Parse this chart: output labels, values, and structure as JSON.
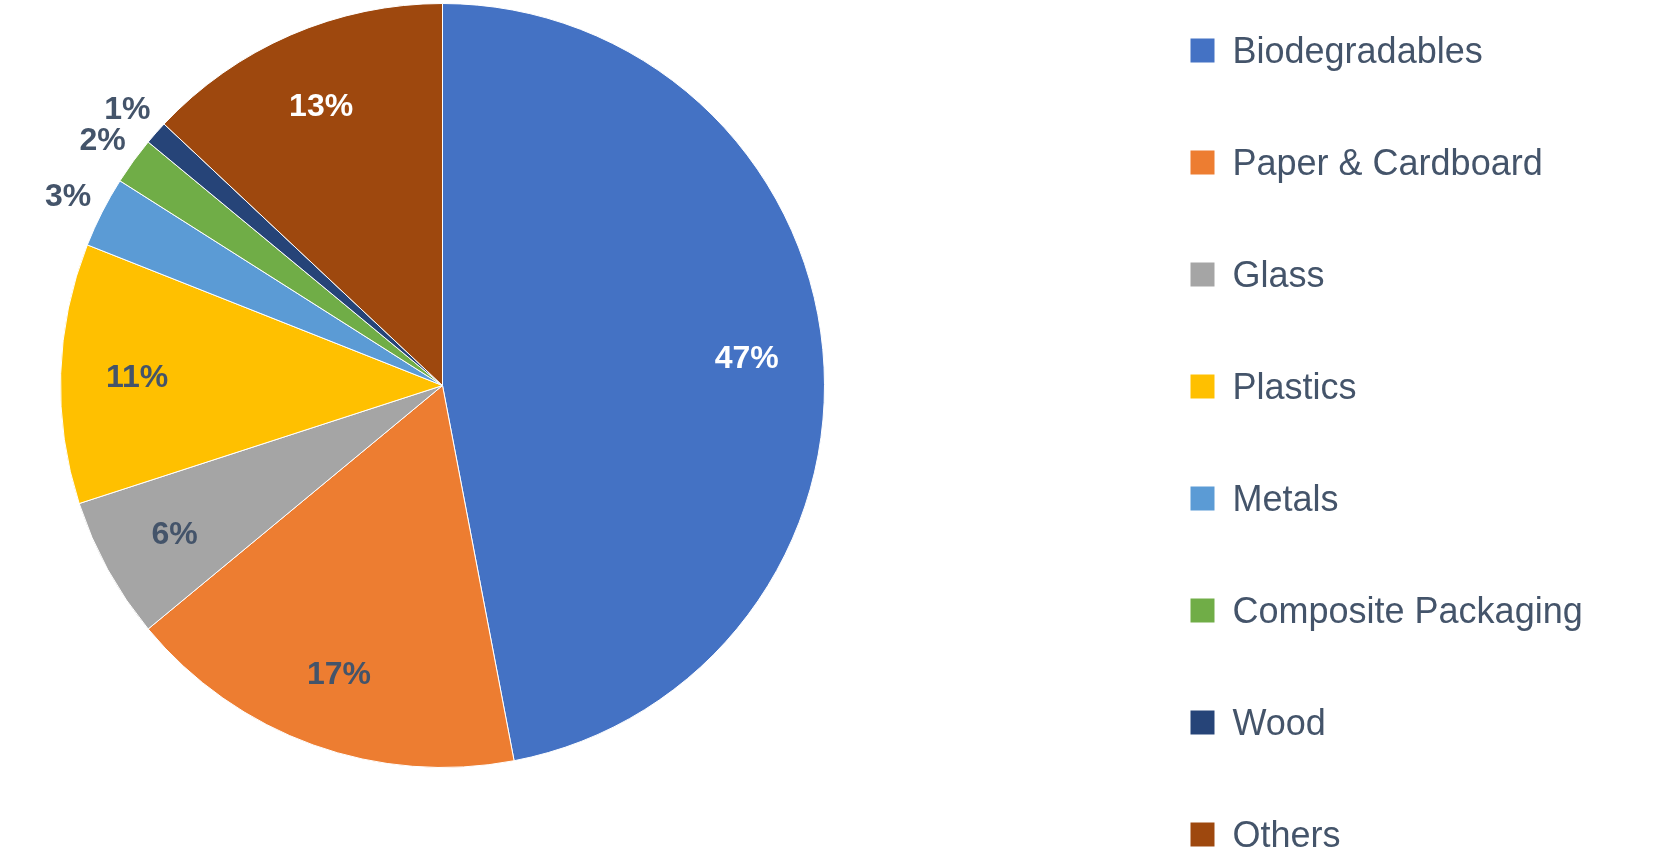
{
  "chart_data": {
    "type": "pie",
    "categories": [
      "Biodegradables",
      "Paper & Cardboard",
      "Glass",
      "Plastics",
      "Metals",
      "Composite Packaging",
      "Wood",
      "Others"
    ],
    "values": [
      47,
      17,
      6,
      11,
      3,
      2,
      1,
      13
    ],
    "colors": [
      "#4472c4",
      "#ed7d31",
      "#a5a5a5",
      "#ffc000",
      "#5b9bd5",
      "#70ad47",
      "#264478",
      "#9e480e"
    ],
    "value_labels": [
      "47%",
      "17%",
      "6%",
      "11%",
      "3%",
      "2%",
      "1%",
      "13%"
    ],
    "legend": "right"
  }
}
